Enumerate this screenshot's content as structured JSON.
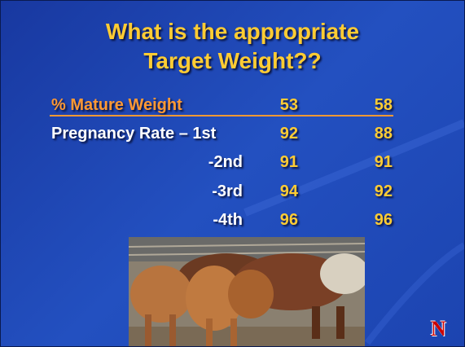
{
  "title": [
    "What is the appropriate",
    "Target Weight??"
  ],
  "table": {
    "header": [
      "% Mature Weight",
      53,
      58
    ],
    "rows": [
      [
        "Pregnancy Rate – 1st",
        92,
        88
      ],
      [
        "-2nd",
        91,
        91
      ],
      [
        "-3rd",
        94,
        92
      ],
      [
        "-4th",
        96,
        96
      ]
    ]
  },
  "logo": "N"
}
